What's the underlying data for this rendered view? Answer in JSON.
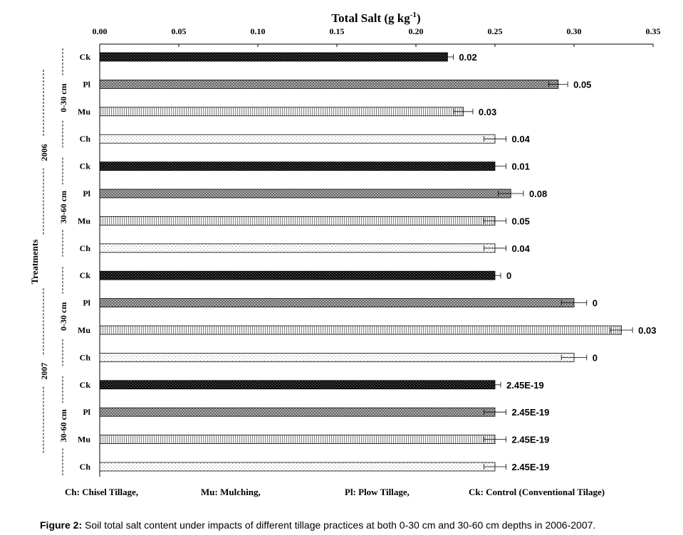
{
  "chart_data": {
    "type": "bar",
    "orientation": "horizontal",
    "title": "Total Salt (g kg⁻¹)",
    "title_base": "Total Salt (g kg",
    "title_sup": "-1",
    "title_close": ")",
    "ylabel": "Treatments",
    "xlim": [
      0,
      0.35
    ],
    "xticks": [
      "0.00",
      "0.05",
      "0.10",
      "0.15",
      "0.20",
      "0.25",
      "0.30",
      "0.35"
    ],
    "grid": false,
    "legend_position": "bottom",
    "years": [
      {
        "label": "2006",
        "depths": [
          {
            "label": "0-30 cm",
            "bars": [
              {
                "treatment": "Ck",
                "value": 0.22,
                "error": 0.0,
                "label": "0.02"
              },
              {
                "treatment": "Pl",
                "value": 0.29,
                "error": 0.006,
                "label": "0.05"
              },
              {
                "treatment": "Mu",
                "value": 0.23,
                "error": 0.006,
                "label": "0.03"
              },
              {
                "treatment": "Ch",
                "value": 0.25,
                "error": 0.007,
                "label": "0.04"
              }
            ]
          },
          {
            "label": "30-60 cm",
            "bars": [
              {
                "treatment": "Ck",
                "value": 0.25,
                "error": 0.007,
                "label": "0.01"
              },
              {
                "treatment": "Pl",
                "value": 0.26,
                "error": 0.008,
                "label": "0.08"
              },
              {
                "treatment": "Mu",
                "value": 0.25,
                "error": 0.007,
                "label": "0.05"
              },
              {
                "treatment": "Ch",
                "value": 0.25,
                "error": 0.007,
                "label": "0.04"
              }
            ]
          }
        ]
      },
      {
        "label": "2007",
        "depths": [
          {
            "label": "0-30 cm",
            "bars": [
              {
                "treatment": "Ck",
                "value": 0.25,
                "error": 0.0,
                "label": "0"
              },
              {
                "treatment": "Pl",
                "value": 0.3,
                "error": 0.008,
                "label": "0"
              },
              {
                "treatment": "Mu",
                "value": 0.33,
                "error": 0.007,
                "label": "0.03"
              },
              {
                "treatment": "Ch",
                "value": 0.3,
                "error": 0.008,
                "label": "0"
              }
            ]
          },
          {
            "label": "30-60 cm",
            "bars": [
              {
                "treatment": "Ck",
                "value": 0.25,
                "error": 0.0,
                "label": "2.45E-19"
              },
              {
                "treatment": "Pl",
                "value": 0.25,
                "error": 0.007,
                "label": "2.45E-19"
              },
              {
                "treatment": "Mu",
                "value": 0.25,
                "error": 0.007,
                "label": "2.45E-19"
              },
              {
                "treatment": "Ch",
                "value": 0.25,
                "error": 0.007,
                "label": "2.45E-19"
              }
            ]
          }
        ]
      }
    ],
    "legend": [
      {
        "key": "Ch",
        "text": "Ch: Chisel Tillage,"
      },
      {
        "key": "Mu",
        "text": "Mu: Mulching,"
      },
      {
        "key": "Pl",
        "text": "Pl: Plow Tillage,"
      },
      {
        "key": "Ck",
        "text": "Ck: Control (Conventional Tilage)"
      }
    ],
    "patterns": {
      "Ck": "dense-dark",
      "Pl": "crosshatch-gray",
      "Mu": "vertical-stripes",
      "Ch": "sparse-dots"
    }
  },
  "caption": {
    "label": "Figure 2:",
    "text": " Soil total salt content under impacts of different tillage practices at both 0-30 cm and 30-60 cm depths in 2006-2007."
  }
}
